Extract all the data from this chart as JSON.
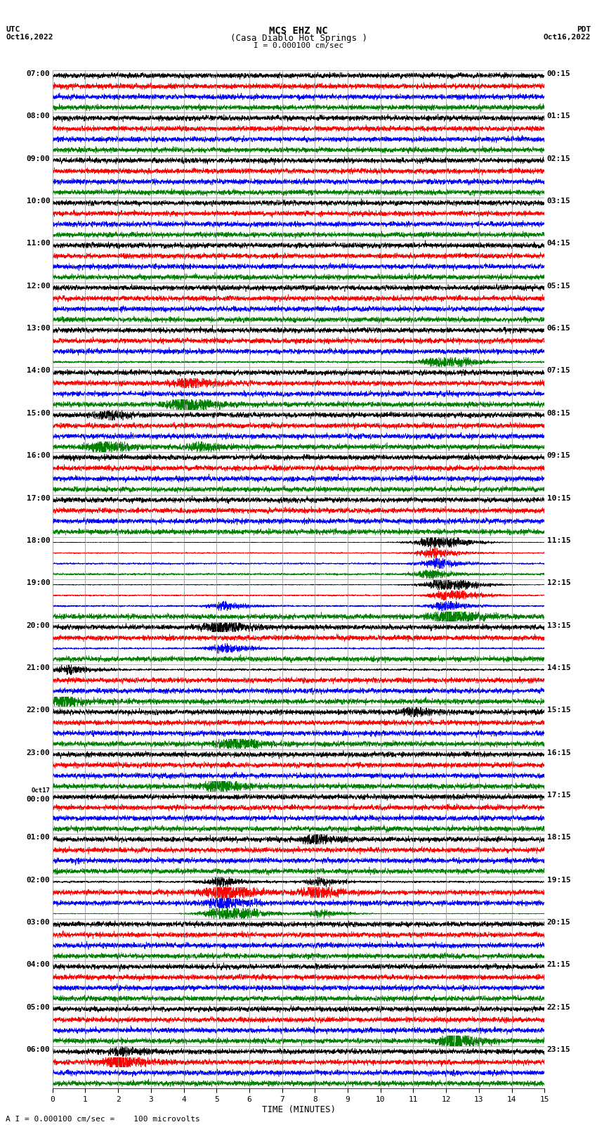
{
  "title_line1": "MCS EHZ NC",
  "title_line2": "(Casa Diablo Hot Springs )",
  "scale_text": "I = 0.000100 cm/sec",
  "footer_text": "A I = 0.000100 cm/sec =    100 microvolts",
  "xlabel": "TIME (MINUTES)",
  "left_label1": "UTC",
  "left_label2": "Oct16,2022",
  "right_label1": "PDT",
  "right_label2": "Oct16,2022",
  "left_times": [
    "07:00",
    "08:00",
    "09:00",
    "10:00",
    "11:00",
    "12:00",
    "13:00",
    "14:00",
    "15:00",
    "16:00",
    "17:00",
    "18:00",
    "19:00",
    "20:00",
    "21:00",
    "22:00",
    "23:00",
    "Oct17",
    "00:00",
    "01:00",
    "02:00",
    "03:00",
    "04:00",
    "05:00",
    "06:00"
  ],
  "right_times": [
    "00:15",
    "01:15",
    "02:15",
    "03:15",
    "04:15",
    "05:15",
    "06:15",
    "07:15",
    "08:15",
    "09:15",
    "10:15",
    "11:15",
    "12:15",
    "13:15",
    "14:15",
    "15:15",
    "16:15",
    "17:15",
    "18:15",
    "19:15",
    "20:15",
    "21:15",
    "22:15",
    "23:15"
  ],
  "num_rows": 24,
  "traces_per_row": 4,
  "trace_colors": [
    "black",
    "red",
    "blue",
    "green"
  ],
  "bg_color": "#ffffff",
  "grid_color": "#999999",
  "figwidth": 8.5,
  "figheight": 16.13,
  "dpi": 100,
  "xmin": 0,
  "xmax": 15,
  "xticks": [
    0,
    1,
    2,
    3,
    4,
    5,
    6,
    7,
    8,
    9,
    10,
    11,
    12,
    13,
    14,
    15
  ],
  "n_points": 4500,
  "noise_amp": 1.0,
  "trace_ylim": 3.0,
  "lw": 0.4
}
